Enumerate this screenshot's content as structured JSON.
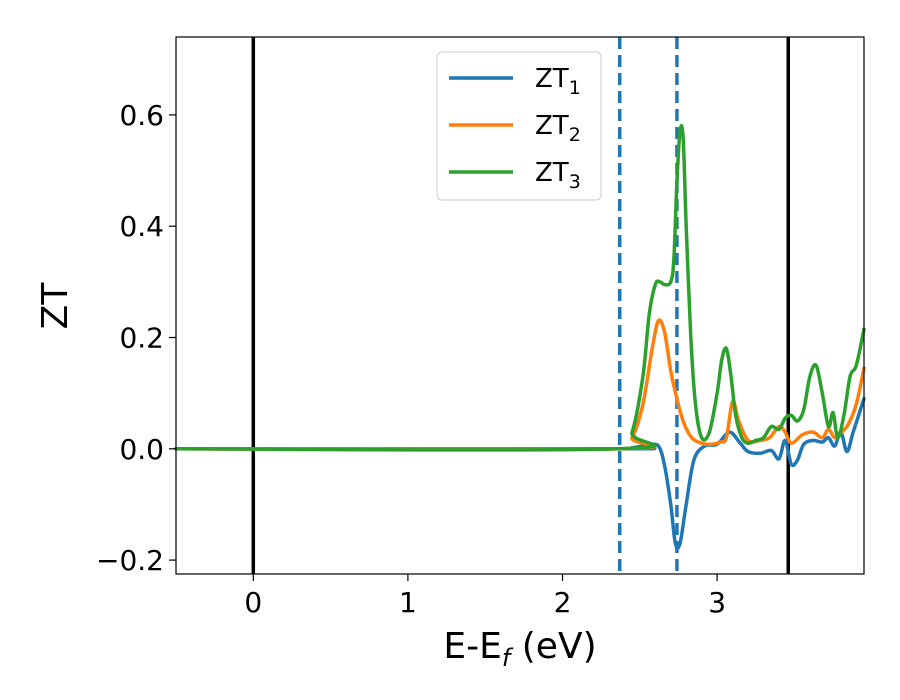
{
  "chart_data": {
    "type": "line",
    "title": "",
    "xlabel": {
      "base": "E-E",
      "sub": "f",
      "rest": " (eV)"
    },
    "ylabel": "ZT",
    "xlim": [
      -0.5,
      3.95
    ],
    "ylim": [
      -0.225,
      0.74
    ],
    "xticks": [
      0,
      1,
      2,
      3
    ],
    "xtick_labels": [
      "0",
      "1",
      "2",
      "3"
    ],
    "yticks": [
      -0.2,
      0.0,
      0.2,
      0.4,
      0.6
    ],
    "ytick_labels": [
      "−0.2",
      "0.0",
      "0.2",
      "0.4",
      "0.6"
    ],
    "grid": false,
    "legend_position": "top-center",
    "vlines": [
      {
        "x": 0.0,
        "style": "solid",
        "color": "#000000"
      },
      {
        "x": 3.46,
        "style": "solid",
        "color": "#000000"
      },
      {
        "x": 2.37,
        "style": "dashed",
        "color": "#1f77b4"
      },
      {
        "x": 2.74,
        "style": "dashed",
        "color": "#1f77b4"
      }
    ],
    "series": [
      {
        "name": "ZT",
        "sub": "1",
        "color": "#1f77b4",
        "x": [
          -0.5,
          2.36,
          2.45,
          2.55,
          2.62,
          2.66,
          2.7,
          2.73,
          2.76,
          2.8,
          2.85,
          2.92,
          3.0,
          3.08,
          3.15,
          3.2,
          3.28,
          3.35,
          3.4,
          3.44,
          3.48,
          3.52,
          3.56,
          3.62,
          3.68,
          3.72,
          3.76,
          3.8,
          3.84,
          3.88,
          3.95
        ],
        "y": [
          0.0,
          0.0,
          0.002,
          0.006,
          0.005,
          -0.03,
          -0.1,
          -0.17,
          -0.17,
          -0.1,
          -0.02,
          0.005,
          0.008,
          0.03,
          0.01,
          -0.005,
          -0.008,
          -0.003,
          -0.018,
          0.015,
          -0.028,
          -0.02,
          0.008,
          0.015,
          0.012,
          0.02,
          0.005,
          0.03,
          -0.005,
          0.03,
          0.09
        ]
      },
      {
        "name": "ZT",
        "sub": "2",
        "color": "#ff7f0e",
        "x": [
          -0.5,
          2.36,
          2.45,
          2.52,
          2.58,
          2.62,
          2.66,
          2.7,
          2.74,
          2.78,
          2.83,
          2.88,
          2.95,
          3.02,
          3.06,
          3.1,
          3.14,
          3.2,
          3.28,
          3.34,
          3.4,
          3.44,
          3.48,
          3.55,
          3.62,
          3.68,
          3.72,
          3.76,
          3.8,
          3.85,
          3.9,
          3.95
        ],
        "y": [
          0.0,
          0.0,
          0.02,
          0.08,
          0.18,
          0.23,
          0.21,
          0.14,
          0.09,
          0.05,
          0.022,
          0.012,
          0.008,
          0.012,
          0.02,
          0.085,
          0.05,
          0.015,
          0.015,
          0.02,
          0.04,
          0.03,
          0.01,
          0.025,
          0.03,
          0.02,
          0.035,
          0.02,
          0.028,
          0.045,
          0.08,
          0.145
        ]
      },
      {
        "name": "ZT",
        "sub": "3",
        "color": "#2ca02c",
        "x": [
          -0.5,
          2.36,
          2.45,
          2.52,
          2.56,
          2.6,
          2.63,
          2.66,
          2.7,
          2.72,
          2.74,
          2.76,
          2.78,
          2.8,
          2.83,
          2.86,
          2.9,
          2.95,
          3.0,
          3.03,
          3.06,
          3.09,
          3.12,
          3.16,
          3.2,
          3.25,
          3.3,
          3.35,
          3.4,
          3.44,
          3.48,
          3.52,
          3.56,
          3.6,
          3.64,
          3.68,
          3.72,
          3.75,
          3.78,
          3.82,
          3.86,
          3.9,
          3.95
        ],
        "y": [
          0.0,
          0.0,
          0.03,
          0.13,
          0.24,
          0.295,
          0.3,
          0.295,
          0.3,
          0.34,
          0.48,
          0.57,
          0.56,
          0.4,
          0.2,
          0.08,
          0.02,
          0.03,
          0.1,
          0.16,
          0.18,
          0.13,
          0.06,
          0.02,
          0.01,
          0.015,
          0.02,
          0.04,
          0.035,
          0.055,
          0.06,
          0.05,
          0.07,
          0.13,
          0.15,
          0.1,
          0.04,
          0.065,
          0.02,
          0.06,
          0.13,
          0.15,
          0.215
        ]
      }
    ]
  }
}
